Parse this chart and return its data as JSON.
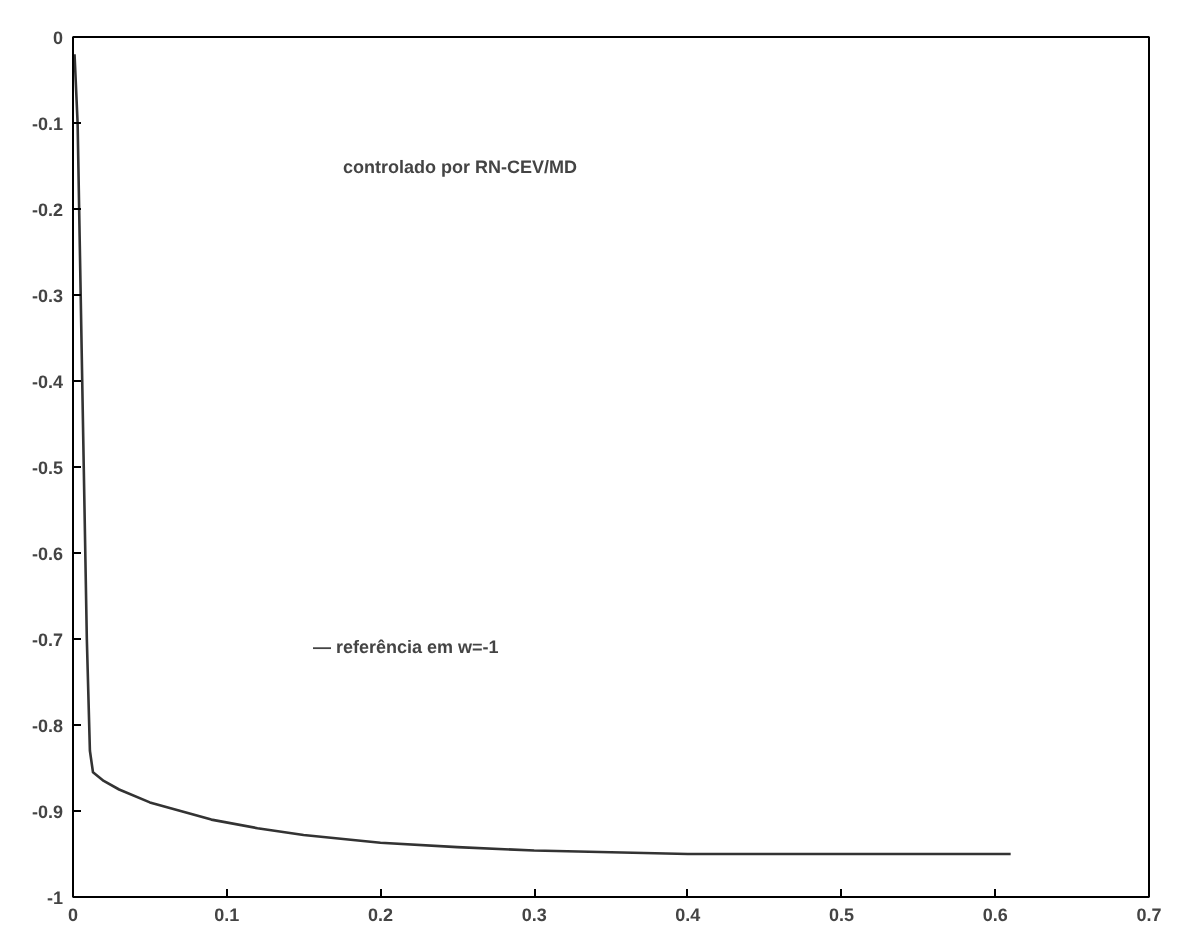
{
  "chart_data": {
    "type": "line",
    "x": [
      0.001,
      0.003,
      0.005,
      0.007,
      0.009,
      0.011,
      0.013,
      0.02,
      0.03,
      0.05,
      0.07,
      0.09,
      0.12,
      0.15,
      0.2,
      0.25,
      0.3,
      0.35,
      0.4,
      0.5,
      0.61
    ],
    "series": [
      {
        "color": "#333333",
        "values": [
          -0.02,
          -0.1,
          -0.3,
          -0.5,
          -0.7,
          -0.83,
          -0.855,
          -0.865,
          -0.875,
          -0.89,
          -0.9,
          -0.91,
          -0.92,
          -0.928,
          -0.937,
          -0.942,
          -0.946,
          -0.948,
          -0.95,
          -0.95,
          -0.95
        ]
      }
    ],
    "xlim": [
      0,
      0.7
    ],
    "ylim": [
      -1,
      0
    ],
    "xticks": [
      0,
      0.1,
      0.2,
      0.3,
      0.4,
      0.5,
      0.6,
      0.7
    ],
    "yticks": [
      -1,
      -0.9,
      -0.8,
      -0.7,
      -0.6,
      -0.5,
      -0.4,
      -0.3,
      -0.2,
      -0.1,
      0
    ],
    "annotations": [
      "controlado por RN-CEV/MD",
      "— referência em w=-1"
    ],
    "grid": false,
    "marker": "none",
    "line_style": "solid"
  }
}
